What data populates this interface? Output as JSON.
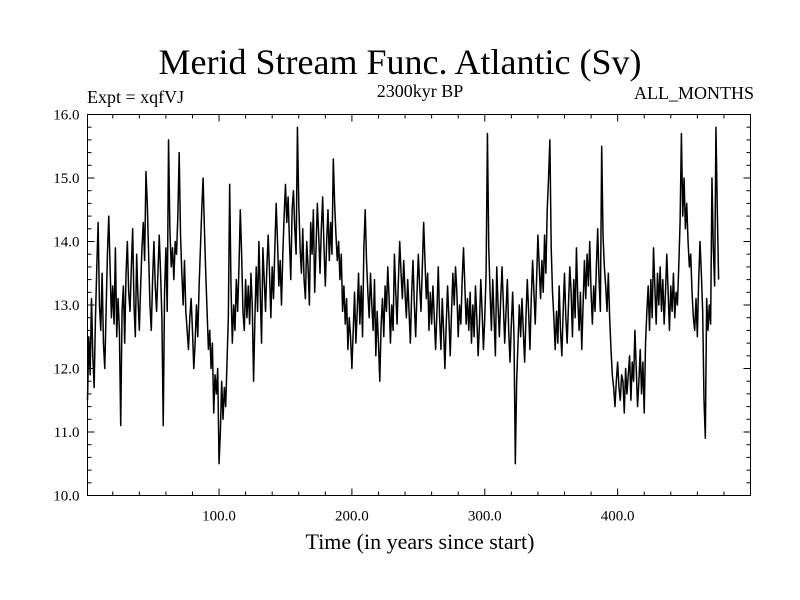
{
  "header": {
    "title": "Merid Stream Func. Atlantic (Sv)",
    "experiment": "Expt = xqfVJ",
    "period": "2300kyr BP",
    "months": "ALL_MONTHS"
  },
  "chart_data": {
    "type": "line",
    "title": "Merid Stream Func. Atlantic (Sv)",
    "xlabel": "Time (in years since start)",
    "ylabel": "",
    "xlim": [
      1,
      500
    ],
    "ylim": [
      10.0,
      16.0
    ],
    "xticks": [
      100,
      200,
      300,
      400
    ],
    "xtick_labels": [
      "100.0",
      "200.0",
      "300.0",
      "400.0"
    ],
    "yticks": [
      10,
      11,
      12,
      13,
      14,
      15,
      16
    ],
    "ytick_labels": [
      "10.0",
      "11.0",
      "12.0",
      "13.0",
      "14.0",
      "15.0",
      "16.0"
    ],
    "series": [
      {
        "name": "Merid Stream Func. Atlantic",
        "x_start": 1,
        "x_step": 1,
        "values": [
          11.5,
          12.5,
          11.9,
          13.1,
          12.2,
          11.7,
          12.8,
          13.6,
          14.3,
          13.0,
          12.6,
          13.5,
          12.4,
          12.0,
          12.9,
          13.8,
          14.4,
          13.6,
          12.8,
          13.3,
          12.7,
          13.9,
          12.5,
          13.1,
          12.6,
          11.1,
          12.9,
          13.3,
          12.4,
          13.5,
          14.0,
          13.2,
          12.9,
          13.6,
          14.2,
          13.0,
          12.5,
          13.8,
          13.1,
          12.6,
          13.3,
          13.9,
          14.3,
          13.7,
          15.1,
          14.6,
          13.8,
          13.0,
          12.6,
          13.4,
          14.0,
          13.3,
          12.9,
          13.5,
          14.1,
          13.5,
          12.8,
          11.1,
          13.2,
          13.9,
          12.9,
          15.6,
          14.2,
          13.6,
          13.9,
          13.4,
          14.0,
          13.8,
          14.4,
          15.4,
          14.1,
          13.5,
          13.0,
          13.7,
          12.9,
          12.6,
          12.3,
          12.8,
          13.1,
          12.6,
          12.0,
          12.4,
          13.0,
          12.5,
          13.3,
          13.9,
          14.5,
          15.0,
          14.2,
          13.5,
          12.9,
          12.3,
          12.6,
          12.0,
          12.4,
          11.3,
          11.9,
          11.6,
          12.0,
          10.5,
          11.0,
          11.8,
          11.2,
          11.7,
          11.4,
          12.1,
          12.8,
          14.9,
          13.3,
          12.4,
          13.0,
          12.6,
          13.4,
          12.9,
          13.6,
          14.5,
          13.8,
          12.9,
          12.6,
          13.4,
          12.8,
          13.3,
          12.7,
          13.5,
          13.0,
          11.8,
          12.8,
          13.6,
          12.9,
          14.0,
          13.2,
          12.4,
          13.9,
          13.4,
          12.9,
          13.6,
          14.1,
          13.5,
          12.8,
          13.6,
          13.1,
          13.9,
          14.6,
          14.0,
          13.3,
          13.7,
          13.0,
          13.8,
          14.4,
          14.9,
          14.3,
          14.7,
          14.0,
          13.4,
          14.5,
          14.8,
          14.2,
          13.8,
          15.8,
          14.6,
          13.9,
          13.5,
          14.2,
          13.4,
          13.1,
          14.0,
          13.6,
          13.0,
          14.3,
          13.8,
          14.5,
          13.2,
          13.9,
          14.6,
          14.1,
          13.5,
          14.2,
          14.7,
          13.9,
          13.3,
          14.0,
          14.5,
          13.7,
          14.3,
          13.8,
          15.3,
          14.6,
          14.1,
          13.7,
          14.0,
          13.4,
          13.8,
          12.9,
          13.3,
          12.7,
          13.1,
          12.3,
          12.8,
          12.5,
          12.0,
          12.6,
          13.2,
          12.4,
          12.9,
          13.5,
          12.7,
          13.3,
          12.5,
          13.9,
          14.5,
          13.7,
          13.2,
          12.8,
          13.5,
          13.0,
          12.6,
          13.4,
          12.2,
          12.9,
          12.4,
          11.8,
          12.7,
          13.1,
          12.5,
          13.3,
          12.9,
          13.6,
          13.1,
          12.4,
          13.0,
          12.6,
          13.8,
          13.2,
          12.7,
          13.4,
          14.0,
          13.5,
          13.1,
          13.7,
          13.2,
          12.8,
          13.4,
          12.9,
          12.4,
          13.2,
          13.7,
          13.0,
          12.5,
          13.2,
          13.8,
          13.3,
          12.9,
          13.6,
          14.3,
          13.7,
          13.1,
          13.5,
          12.6,
          13.2,
          12.7,
          13.3,
          12.8,
          12.3,
          12.9,
          13.6,
          12.8,
          12.3,
          13.1,
          12.6,
          12.0,
          12.7,
          13.3,
          12.8,
          12.2,
          12.9,
          13.5,
          13.0,
          13.6,
          13.2,
          12.5,
          13.0,
          12.7,
          13.4,
          13.9,
          13.3,
          12.7,
          13.1,
          12.6,
          13.2,
          12.4,
          13.0,
          12.5,
          13.3,
          12.8,
          12.2,
          12.7,
          13.4,
          12.9,
          12.3,
          12.8,
          13.5,
          15.7,
          13.9,
          13.2,
          12.6,
          13.4,
          12.8,
          12.2,
          13.6,
          13.0,
          12.5,
          13.1,
          13.6,
          13.0,
          12.4,
          12.9,
          13.4,
          12.6,
          12.1,
          12.7,
          13.2,
          12.5,
          10.5,
          11.8,
          12.4,
          13.0,
          12.5,
          13.1,
          12.6,
          12.1,
          12.8,
          13.4,
          12.9,
          12.3,
          13.1,
          13.7,
          13.2,
          12.7,
          13.4,
          14.1,
          13.6,
          13.1,
          13.7,
          13.2,
          14.1,
          13.5,
          14.5,
          15.0,
          15.6,
          13.9,
          13.2,
          12.8,
          12.3,
          12.9,
          12.4,
          13.3,
          12.6,
          12.2,
          12.9,
          13.5,
          12.8,
          12.4,
          13.0,
          13.6,
          13.2,
          12.5,
          13.4,
          12.8,
          13.9,
          13.1,
          12.6,
          13.2,
          12.3,
          13.0,
          13.7,
          13.1,
          13.8,
          13.3,
          14.0,
          13.2,
          12.7,
          13.3,
          12.9,
          13.6,
          14.2,
          13.4,
          12.9,
          15.5,
          14.1,
          13.6,
          13.3,
          12.9,
          13.5,
          12.8,
          12.3,
          11.9,
          11.7,
          11.4,
          11.8,
          12.1,
          11.7,
          11.5,
          11.9,
          11.8,
          11.3,
          12.0,
          11.6,
          11.9,
          12.2,
          11.5,
          12.1,
          11.8,
          12.6,
          12.0,
          11.4,
          11.8,
          12.3,
          11.6,
          12.1,
          11.3,
          12.4,
          12.9,
          13.3,
          12.6,
          13.4,
          12.8,
          13.9,
          13.3,
          12.7,
          13.5,
          13.0,
          13.6,
          12.9,
          13.4,
          12.7,
          13.2,
          13.8,
          13.2,
          12.6,
          13.3,
          12.9,
          13.5,
          12.8,
          13.2,
          13.0,
          13.6,
          14.3,
          15.7,
          14.4,
          15.0,
          14.2,
          14.6,
          14.0,
          13.6,
          13.8,
          13.2,
          12.8,
          12.6,
          13.1,
          12.5,
          13.4,
          14.0,
          13.5,
          12.9,
          11.5,
          10.9,
          13.1,
          12.6,
          13.0,
          12.7,
          15.0,
          13.9,
          13.3,
          15.8,
          14.5,
          13.4
        ]
      }
    ]
  }
}
